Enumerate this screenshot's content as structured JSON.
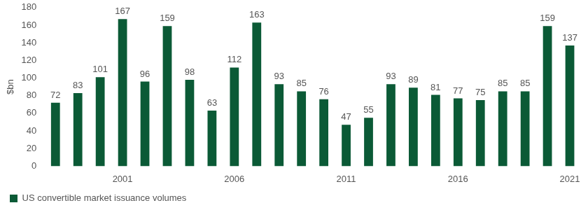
{
  "chart_data": {
    "type": "bar",
    "categories": [
      null,
      null,
      null,
      "2001",
      null,
      null,
      null,
      null,
      "2006",
      null,
      null,
      null,
      null,
      "2011",
      null,
      null,
      null,
      null,
      "2016",
      null,
      null,
      null,
      null,
      "2021"
    ],
    "series": [
      {
        "name": "US convertible market issuance volumes",
        "color": "#0b5a36",
        "values": [
          72,
          83,
          101,
          167,
          96,
          159,
          98,
          63,
          112,
          163,
          93,
          85,
          76,
          47,
          55,
          93,
          89,
          81,
          77,
          75,
          85,
          85,
          159,
          137
        ]
      }
    ],
    "y_label": "$bn",
    "ylim": [
      0,
      180
    ],
    "yticks": [
      0,
      20,
      40,
      60,
      80,
      100,
      120,
      140,
      160,
      180
    ],
    "grid": false,
    "legend": "bottom-left",
    "data_labels": true
  }
}
